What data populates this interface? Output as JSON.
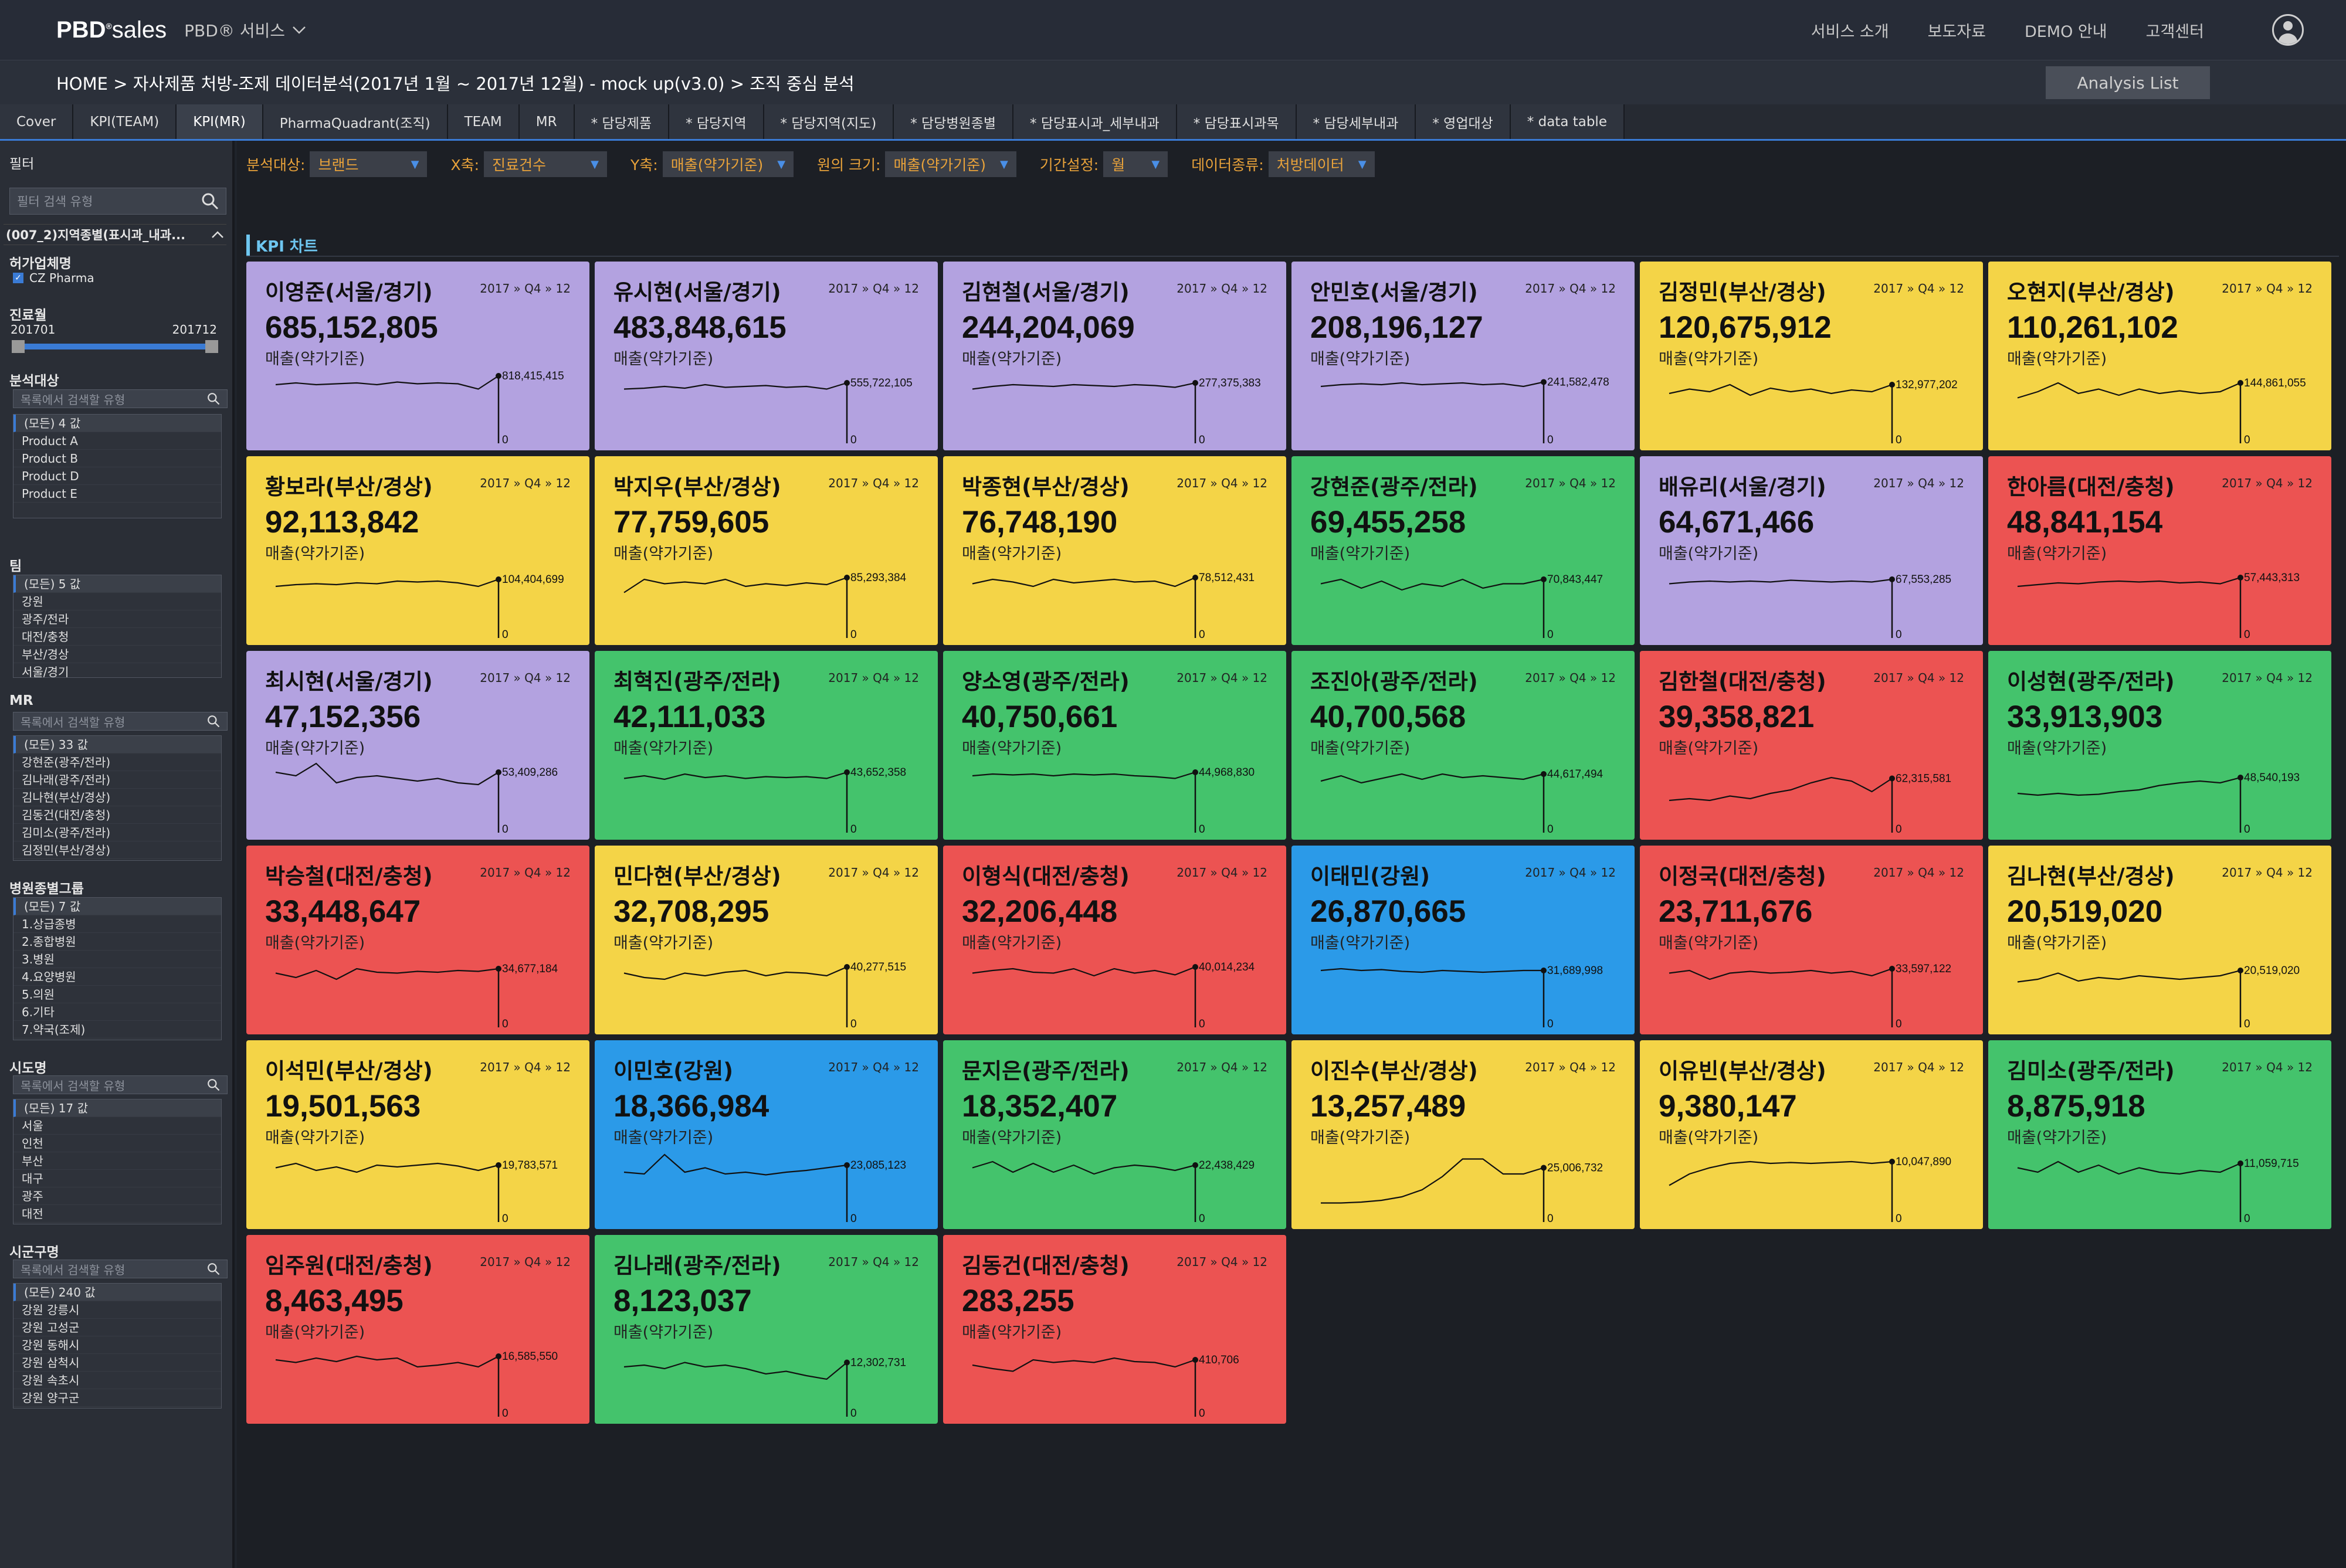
{
  "nav": {
    "logo_a": "PBD",
    "logo_b": "sales",
    "service": "PBD® 서비스",
    "menu": [
      "서비스 소개",
      "보도자료",
      "DEMO 안내",
      "고객센터"
    ]
  },
  "breadcrumb": "HOME >  자사제품 처방-조제 데이터분석(2017년 1월 ~ 2017년 12월) - mock up(v3.0) > 조직 중심 분석",
  "analysis_button": "Analysis List",
  "tabs": [
    "Cover",
    "KPI(TEAM)",
    "KPI(MR)",
    "PharmaQuadrant(조직)",
    "TEAM",
    "MR",
    "* 담당제품",
    "* 담당지역",
    "* 담당지역(지도)",
    "* 담당병원종별",
    "* 담당표시과_세부내과",
    "* 담당표시과목",
    "* 담당세부내과",
    "* 영업대상",
    "* data table"
  ],
  "active_tab": 2,
  "sidebar": {
    "filter_title": "필터",
    "filter_search": "필터 검색 유형",
    "group_title": "(007_2)지역종별(표시과_내과...",
    "company_title": "허가업체명",
    "company_item": "CZ Pharma",
    "period_title": "진료월",
    "period_from": "201701",
    "period_to": "201712",
    "target_title": "분석대상",
    "search_ph": "목록에서 검색할 유형",
    "target_items": [
      "(모든) 4 값",
      "Product A",
      "Product B",
      "Product D",
      "Product E"
    ],
    "team_title": "팀",
    "team_items": [
      "(모든) 5 값",
      "강원",
      "광주/전라",
      "대전/충청",
      "부산/경상",
      "서울/경기"
    ],
    "mr_title": "MR",
    "mr_items": [
      "(모든) 33 값",
      "강현준(광주/전라)",
      "김나래(광주/전라)",
      "김나현(부산/경상)",
      "김동건(대전/충청)",
      "김미소(광주/전라)",
      "김정민(부산/경상)"
    ],
    "hosp_title": "병원종별그룹",
    "hosp_items": [
      "(모든) 7 값",
      "1.상급종병",
      "2.종합병원",
      "3.병원",
      "4.요양병원",
      "5.의원",
      "6.기타",
      "7.약국(조제)"
    ],
    "sido_title": "시도명",
    "sido_items": [
      "(모든) 17 값",
      "서울",
      "인천",
      "부산",
      "대구",
      "광주",
      "대전"
    ],
    "sigungu_title": "시군구명",
    "sigungu_items": [
      "(모든) 240 값",
      "강원 강릉시",
      "강원 고성군",
      "강원 동해시",
      "강원 삼척시",
      "강원 속초시",
      "강원 양구군"
    ]
  },
  "filters": [
    {
      "label": "분석대상:",
      "value": "브랜드"
    },
    {
      "label": "X축:",
      "value": "진료건수"
    },
    {
      "label": "Y축:",
      "value": "매출(약가기준)"
    },
    {
      "label": "원의 크기:",
      "value": "매출(약가기준)"
    },
    {
      "label": "기간설정:",
      "value": "월"
    },
    {
      "label": "데이터종류:",
      "value": "처방데이터"
    }
  ],
  "kpi_title": "KPI 차트",
  "colors": {
    "purple": "#b3a2e0",
    "yellow": "#f4d447",
    "green": "#44c36c",
    "red": "#ec5352",
    "blue": "#2b9ae8"
  },
  "cards": [
    {
      "name": "이영준(서울/경기)",
      "period": "2017 » Q4 » 12",
      "value": "685,152,805",
      "label": "매출(약가기준)",
      "last": "818,415,415",
      "zero": "0",
      "color": "purple",
      "trend": [
        0.6,
        0.62,
        0.6,
        0.61,
        0.62,
        0.6,
        0.63,
        0.61,
        0.62,
        0.61,
        0.55,
        0.7
      ]
    },
    {
      "name": "유시현(서울/경기)",
      "period": "2017 » Q4 » 12",
      "value": "483,848,615",
      "label": "매출(약가기준)",
      "last": "555,722,105",
      "zero": "0",
      "color": "purple",
      "trend": [
        0.55,
        0.56,
        0.58,
        0.56,
        0.6,
        0.57,
        0.58,
        0.59,
        0.57,
        0.58,
        0.55,
        0.62
      ]
    },
    {
      "name": "김현철(서울/경기)",
      "period": "2017 » Q4 » 12",
      "value": "244,204,069",
      "label": "매출(약가기준)",
      "last": "277,375,383",
      "zero": "0",
      "color": "purple",
      "trend": [
        0.55,
        0.58,
        0.6,
        0.59,
        0.58,
        0.6,
        0.59,
        0.58,
        0.6,
        0.59,
        0.57,
        0.62
      ]
    },
    {
      "name": "안민호(서울/경기)",
      "period": "2017 » Q4 » 12",
      "value": "208,196,127",
      "label": "매출(약가기준)",
      "last": "241,582,478",
      "zero": "0",
      "color": "purple",
      "trend": [
        0.58,
        0.6,
        0.61,
        0.6,
        0.62,
        0.6,
        0.61,
        0.62,
        0.6,
        0.61,
        0.58,
        0.63
      ]
    },
    {
      "name": "김정민(부산/경상)",
      "period": "2017 » Q4 » 12",
      "value": "120,675,912",
      "label": "매출(약가기준)",
      "last": "132,977,202",
      "zero": "0",
      "color": "yellow",
      "trend": [
        0.5,
        0.55,
        0.52,
        0.6,
        0.48,
        0.56,
        0.52,
        0.55,
        0.5,
        0.54,
        0.52,
        0.6
      ]
    },
    {
      "name": "오현지(부산/경상)",
      "period": "2017 » Q4 » 12",
      "value": "110,261,102",
      "label": "매출(약가기준)",
      "last": "144,861,055",
      "zero": "0",
      "color": "yellow",
      "trend": [
        0.45,
        0.52,
        0.62,
        0.5,
        0.55,
        0.48,
        0.55,
        0.5,
        0.53,
        0.5,
        0.52,
        0.62
      ]
    },
    {
      "name": "황보라(부산/경상)",
      "period": "2017 » Q4 » 12",
      "value": "92,113,842",
      "label": "매출(약가기준)",
      "last": "104,404,699",
      "zero": "0",
      "color": "yellow",
      "trend": [
        0.52,
        0.54,
        0.55,
        0.54,
        0.56,
        0.55,
        0.58,
        0.57,
        0.58,
        0.56,
        0.52,
        0.6
      ]
    },
    {
      "name": "박지우(부산/경상)",
      "period": "2017 » Q4 » 12",
      "value": "77,759,605",
      "label": "매출(약가기준)",
      "last": "85,293,384",
      "zero": "0",
      "color": "yellow",
      "trend": [
        0.45,
        0.6,
        0.55,
        0.57,
        0.55,
        0.6,
        0.52,
        0.55,
        0.53,
        0.56,
        0.54,
        0.62
      ]
    },
    {
      "name": "박종현(부산/경상)",
      "period": "2017 » Q4 » 12",
      "value": "76,748,190",
      "label": "매출(약가기준)",
      "last": "78,512,431",
      "zero": "0",
      "color": "yellow",
      "trend": [
        0.55,
        0.6,
        0.57,
        0.52,
        0.6,
        0.56,
        0.58,
        0.6,
        0.57,
        0.58,
        0.52,
        0.62
      ]
    },
    {
      "name": "강현준(광주/전라)",
      "period": "2017 » Q4 » 12",
      "value": "69,455,258",
      "label": "매출(약가기준)",
      "last": "70,843,447",
      "zero": "0",
      "color": "green",
      "trend": [
        0.55,
        0.6,
        0.5,
        0.58,
        0.48,
        0.55,
        0.52,
        0.6,
        0.5,
        0.55,
        0.55,
        0.6
      ]
    },
    {
      "name": "배유리(서울/경기)",
      "period": "2017 » Q4 » 12",
      "value": "64,671,466",
      "label": "매출(약가기준)",
      "last": "67,553,285",
      "zero": "0",
      "color": "purple",
      "trend": [
        0.55,
        0.57,
        0.58,
        0.57,
        0.58,
        0.57,
        0.59,
        0.58,
        0.57,
        0.58,
        0.57,
        0.6
      ]
    },
    {
      "name": "한아름(대전/충청)",
      "period": "2017 » Q4 » 12",
      "value": "48,841,154",
      "label": "매출(약가기준)",
      "last": "57,443,313",
      "zero": "0",
      "color": "red",
      "trend": [
        0.52,
        0.54,
        0.56,
        0.55,
        0.57,
        0.58,
        0.57,
        0.58,
        0.56,
        0.57,
        0.55,
        0.62
      ]
    },
    {
      "name": "최시현(서울/경기)",
      "period": "2017 » Q4 » 12",
      "value": "47,152,356",
      "label": "매출(약가기준)",
      "last": "53,409,286",
      "zero": "0",
      "color": "purple",
      "trend": [
        0.62,
        0.58,
        0.72,
        0.5,
        0.56,
        0.58,
        0.55,
        0.52,
        0.55,
        0.5,
        0.48,
        0.62
      ]
    },
    {
      "name": "최혁진(광주/전라)",
      "period": "2017 » Q4 » 12",
      "value": "42,111,033",
      "label": "매출(약가기준)",
      "last": "43,652,358",
      "zero": "0",
      "color": "green",
      "trend": [
        0.55,
        0.58,
        0.54,
        0.6,
        0.56,
        0.58,
        0.55,
        0.57,
        0.56,
        0.57,
        0.55,
        0.62
      ]
    },
    {
      "name": "양소영(광주/전라)",
      "period": "2017 » Q4 » 12",
      "value": "40,750,661",
      "label": "매출(약가기준)",
      "last": "44,968,830",
      "zero": "0",
      "color": "green",
      "trend": [
        0.58,
        0.6,
        0.59,
        0.6,
        0.58,
        0.6,
        0.59,
        0.6,
        0.58,
        0.57,
        0.55,
        0.62
      ]
    },
    {
      "name": "조진아(광주/전라)",
      "period": "2017 » Q4 » 12",
      "value": "40,700,568",
      "label": "매출(약가기준)",
      "last": "44,617,494",
      "zero": "0",
      "color": "green",
      "trend": [
        0.52,
        0.58,
        0.5,
        0.55,
        0.6,
        0.54,
        0.6,
        0.56,
        0.58,
        0.56,
        0.54,
        0.6
      ]
    },
    {
      "name": "김한철(대전/충청)",
      "period": "2017 » Q4 » 12",
      "value": "39,358,821",
      "label": "매출(약가기준)",
      "last": "62,315,581",
      "zero": "0",
      "color": "red",
      "trend": [
        0.3,
        0.32,
        0.3,
        0.35,
        0.32,
        0.38,
        0.42,
        0.5,
        0.56,
        0.52,
        0.4,
        0.55
      ]
    },
    {
      "name": "이성현(광주/전라)",
      "period": "2017 » Q4 » 12",
      "value": "33,913,903",
      "label": "매출(약가기준)",
      "last": "48,540,193",
      "zero": "0",
      "color": "green",
      "trend": [
        0.38,
        0.36,
        0.38,
        0.36,
        0.37,
        0.4,
        0.42,
        0.47,
        0.5,
        0.52,
        0.5,
        0.56
      ]
    },
    {
      "name": "박승철(대전/충청)",
      "period": "2017 » Q4 » 12",
      "value": "33,448,647",
      "label": "매출(약가기준)",
      "last": "34,677,184",
      "zero": "0",
      "color": "red",
      "trend": [
        0.55,
        0.5,
        0.58,
        0.48,
        0.6,
        0.56,
        0.55,
        0.57,
        0.56,
        0.58,
        0.57,
        0.6
      ]
    },
    {
      "name": "민다현(부산/경상)",
      "period": "2017 » Q4 » 12",
      "value": "32,708,295",
      "label": "매출(약가기준)",
      "last": "40,277,515",
      "zero": "0",
      "color": "yellow",
      "trend": [
        0.55,
        0.5,
        0.48,
        0.55,
        0.52,
        0.56,
        0.58,
        0.52,
        0.56,
        0.55,
        0.52,
        0.62
      ]
    },
    {
      "name": "이형식(대전/충청)",
      "period": "2017 » Q4 » 12",
      "value": "32,206,448",
      "label": "매출(약가기준)",
      "last": "40,014,234",
      "zero": "0",
      "color": "red",
      "trend": [
        0.55,
        0.58,
        0.6,
        0.56,
        0.55,
        0.6,
        0.52,
        0.6,
        0.55,
        0.58,
        0.53,
        0.62
      ]
    },
    {
      "name": "이태민(강원)",
      "period": "2017 » Q4 » 12",
      "value": "26,870,665",
      "label": "매출(약가기준)",
      "last": "31,689,998",
      "zero": "0",
      "color": "blue",
      "trend": [
        0.58,
        0.6,
        0.58,
        0.59,
        0.57,
        0.56,
        0.58,
        0.57,
        0.56,
        0.57,
        0.58,
        0.58
      ]
    },
    {
      "name": "이정국(대전/충청)",
      "period": "2017 » Q4 » 12",
      "value": "23,711,676",
      "label": "매출(약가기준)",
      "last": "33,597,122",
      "zero": "0",
      "color": "red",
      "trend": [
        0.55,
        0.58,
        0.48,
        0.55,
        0.57,
        0.55,
        0.56,
        0.58,
        0.55,
        0.57,
        0.52,
        0.6
      ]
    },
    {
      "name": "김나현(부산/경상)",
      "period": "2017 » Q4 » 12",
      "value": "20,519,020",
      "label": "매출(약가기준)",
      "last": "20,519,020",
      "zero": "0",
      "color": "yellow",
      "trend": [
        0.45,
        0.48,
        0.55,
        0.46,
        0.5,
        0.48,
        0.52,
        0.5,
        0.48,
        0.5,
        0.52,
        0.58
      ]
    },
    {
      "name": "이석민(부산/경상)",
      "period": "2017 » Q4 » 12",
      "value": "19,501,563",
      "label": "매출(약가기준)",
      "last": "19,783,571",
      "zero": "0",
      "color": "yellow",
      "trend": [
        0.55,
        0.6,
        0.52,
        0.56,
        0.5,
        0.58,
        0.56,
        0.58,
        0.6,
        0.57,
        0.52,
        0.58
      ]
    },
    {
      "name": "이민호(강원)",
      "period": "2017 » Q4 » 12",
      "value": "18,366,984",
      "label": "매출(약가기준)",
      "last": "23,085,123",
      "zero": "0",
      "color": "blue",
      "trend": [
        0.5,
        0.48,
        0.7,
        0.5,
        0.55,
        0.48,
        0.5,
        0.47,
        0.5,
        0.52,
        0.55,
        0.58
      ]
    },
    {
      "name": "문지은(광주/전라)",
      "period": "2017 » Q4 » 12",
      "value": "18,352,407",
      "label": "매출(약가기준)",
      "last": "22,438,429",
      "zero": "0",
      "color": "green",
      "trend": [
        0.55,
        0.62,
        0.5,
        0.6,
        0.5,
        0.58,
        0.48,
        0.55,
        0.58,
        0.56,
        0.52,
        0.58
      ]
    },
    {
      "name": "이진수(부산/경상)",
      "period": "2017 » Q4 » 12",
      "value": "13,257,489",
      "label": "매출(약가기준)",
      "last": "25,006,732",
      "zero": "0",
      "color": "yellow",
      "trend": [
        0.15,
        0.15,
        0.16,
        0.18,
        0.22,
        0.3,
        0.45,
        0.65,
        0.65,
        0.48,
        0.48,
        0.55
      ]
    },
    {
      "name": "이유빈(부산/경상)",
      "period": "2017 » Q4 » 12",
      "value": "9,380,147",
      "label": "매출(약가기준)",
      "last": "10,047,890",
      "zero": "0",
      "color": "yellow",
      "trend": [
        0.35,
        0.48,
        0.55,
        0.6,
        0.62,
        0.6,
        0.61,
        0.6,
        0.61,
        0.62,
        0.6,
        0.62
      ]
    },
    {
      "name": "김미소(광주/전라)",
      "period": "2017 » Q4 » 12",
      "value": "8,875,918",
      "label": "매출(약가기준)",
      "last": "11,059,715",
      "zero": "0",
      "color": "green",
      "trend": [
        0.55,
        0.5,
        0.62,
        0.5,
        0.58,
        0.48,
        0.55,
        0.5,
        0.48,
        0.52,
        0.5,
        0.6
      ]
    },
    {
      "name": "임주원(대전/충청)",
      "period": "2017 » Q4 » 12",
      "value": "8,463,495",
      "label": "매출(약가기준)",
      "last": "16,585,550",
      "zero": "0",
      "color": "red",
      "trend": [
        0.58,
        0.55,
        0.6,
        0.56,
        0.62,
        0.58,
        0.6,
        0.5,
        0.52,
        0.55,
        0.5,
        0.62
      ]
    },
    {
      "name": "김나래(광주/전라)",
      "period": "2017 » Q4 » 12",
      "value": "8,123,037",
      "label": "매출(약가기준)",
      "last": "12,302,731",
      "zero": "0",
      "color": "green",
      "trend": [
        0.5,
        0.52,
        0.48,
        0.55,
        0.5,
        0.52,
        0.48,
        0.42,
        0.45,
        0.4,
        0.36,
        0.55
      ]
    },
    {
      "name": "김동건(대전/충청)",
      "period": "2017 » Q4 » 12",
      "value": "283,255",
      "label": "매출(약가기준)",
      "last": "410,706",
      "zero": "0",
      "color": "red",
      "trend": [
        0.52,
        0.48,
        0.45,
        0.58,
        0.55,
        0.57,
        0.55,
        0.6,
        0.56,
        0.55,
        0.5,
        0.58
      ]
    }
  ]
}
